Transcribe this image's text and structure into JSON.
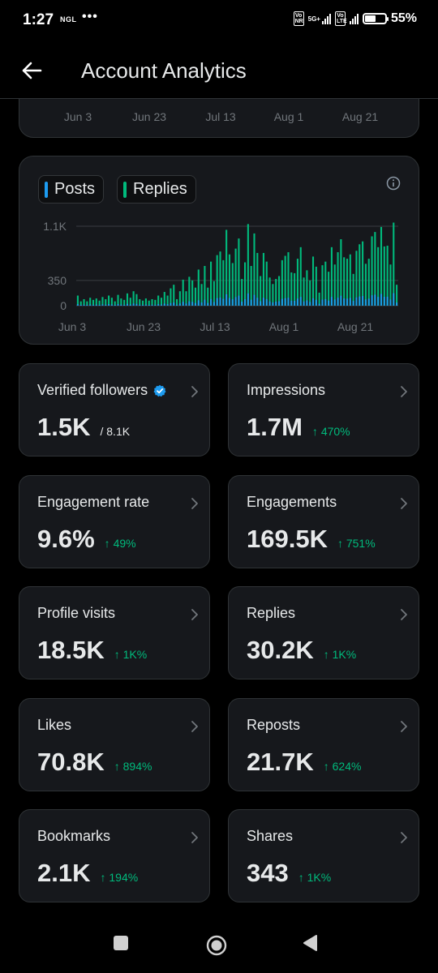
{
  "status_bar": {
    "time": "1:27",
    "carrier_label": "NGL",
    "dots": "•••",
    "sim1_tag": "Vo NR",
    "network": "5G+",
    "sim2_tag": "Vo LTE",
    "battery_percent": "55%",
    "battery_level": 0.55
  },
  "header": {
    "title": "Account Analytics"
  },
  "top_chart": {
    "x_ticks": [
      "Jun 3",
      "Jun 23",
      "Jul 13",
      "Aug 1",
      "Aug 21"
    ]
  },
  "chart_data": {
    "type": "bar",
    "legend": [
      {
        "name": "Posts",
        "color": "#1d9bf0"
      },
      {
        "name": "Replies",
        "color": "#00ba7c"
      }
    ],
    "y_ticks": [
      "1.1K",
      "350",
      "0"
    ],
    "y_tick_values": [
      1100,
      350,
      0
    ],
    "ylim": [
      0,
      1100
    ],
    "x_ticks": [
      "Jun 3",
      "Jun 23",
      "Jul 13",
      "Aug 1",
      "Aug 21"
    ],
    "series": [
      {
        "name": "Replies",
        "color": "#00ba7c",
        "values": [
          140,
          60,
          90,
          60,
          110,
          80,
          100,
          70,
          120,
          90,
          140,
          110,
          60,
          150,
          100,
          80,
          170,
          110,
          200,
          160,
          90,
          70,
          100,
          70,
          90,
          80,
          140,
          110,
          190,
          140,
          240,
          290,
          90,
          200,
          360,
          200,
          400,
          350,
          250,
          500,
          300,
          550,
          250,
          610,
          340,
          700,
          750,
          630,
          1050,
          710,
          590,
          790,
          930,
          370,
          600,
          1130,
          550,
          1000,
          730,
          410,
          730,
          610,
          390,
          300,
          370,
          410,
          630,
          690,
          740,
          460,
          450,
          650,
          810,
          390,
          490,
          350,
          680,
          540,
          180,
          560,
          610,
          470,
          810,
          570,
          740,
          920,
          670,
          650,
          710,
          440,
          760,
          850,
          890,
          580,
          650,
          960,
          1020,
          810,
          1090,
          820,
          830,
          570,
          1150,
          290
        ],
        "posts_share": 0.15
      }
    ]
  },
  "stats": [
    {
      "label": "Verified followers",
      "value": "1.5K",
      "sub": "/ 8.1K",
      "change": "",
      "verified": true
    },
    {
      "label": "Impressions",
      "value": "1.7M",
      "sub": "",
      "change": "470%"
    },
    {
      "label": "Engagement rate",
      "value": "9.6%",
      "sub": "",
      "change": "49%"
    },
    {
      "label": "Engagements",
      "value": "169.5K",
      "sub": "",
      "change": "751%"
    },
    {
      "label": "Profile visits",
      "value": "18.5K",
      "sub": "",
      "change": "1K%"
    },
    {
      "label": "Replies",
      "value": "30.2K",
      "sub": "",
      "change": "1K%"
    },
    {
      "label": "Likes",
      "value": "70.8K",
      "sub": "",
      "change": "894%"
    },
    {
      "label": "Reposts",
      "value": "21.7K",
      "sub": "",
      "change": "624%"
    },
    {
      "label": "Bookmarks",
      "value": "2.1K",
      "sub": "",
      "change": "194%"
    },
    {
      "label": "Shares",
      "value": "343",
      "sub": "",
      "change": "1K%"
    }
  ],
  "change_arrow": "↑",
  "icons": {
    "back": "arrow-left-icon",
    "info": "info-icon",
    "chevron": "chevron-right-icon",
    "verified": "verified-badge-icon",
    "nav_recents": "square-icon",
    "nav_home": "circle-icon",
    "nav_back": "triangle-icon"
  }
}
